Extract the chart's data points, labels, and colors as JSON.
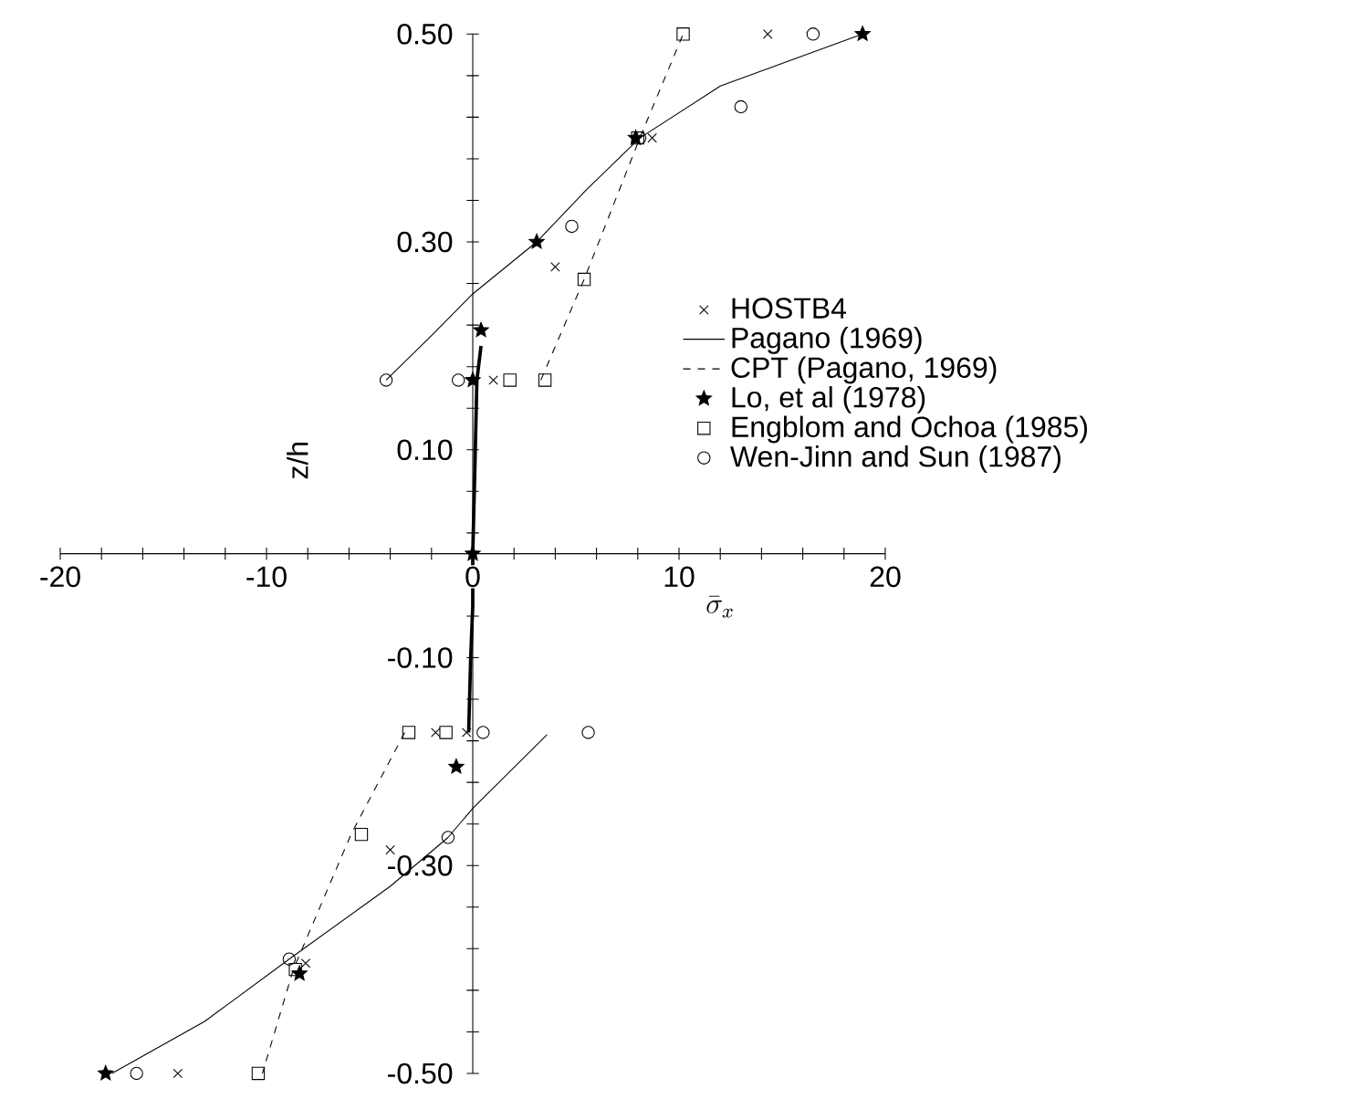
{
  "chart_data": {
    "type": "scatter",
    "xlabel": "\\bar{\\sigma}_x",
    "ylabel": "z/h",
    "xlim": [
      -20,
      20
    ],
    "ylim": [
      -0.5,
      0.5
    ],
    "xticks": [
      -20,
      {
        "value": -18,
        "label": null
      },
      {
        "value": -16,
        "label": null
      },
      {
        "value": -14,
        "label": null
      },
      {
        "value": -12,
        "label": null
      },
      -10,
      {
        "value": -8,
        "label": null
      },
      {
        "value": -6,
        "label": null
      },
      {
        "value": -4,
        "label": null
      },
      {
        "value": -2,
        "label": null
      },
      0,
      {
        "value": 2,
        "label": null
      },
      {
        "value": 4,
        "label": null
      },
      {
        "value": 6,
        "label": null
      },
      {
        "value": 8,
        "label": null
      },
      10,
      {
        "value": 12,
        "label": null
      },
      {
        "value": 14,
        "label": null
      },
      {
        "value": 16,
        "label": null
      },
      {
        "value": 18,
        "label": null
      },
      20
    ],
    "yticks": [
      {
        "value": -0.5,
        "label": "-0.50"
      },
      {
        "value": -0.46,
        "label": null
      },
      {
        "value": -0.42,
        "label": null
      },
      {
        "value": -0.38,
        "label": null
      },
      {
        "value": -0.34,
        "label": null
      },
      {
        "value": -0.3,
        "label": "-0.30"
      },
      {
        "value": -0.26,
        "label": null
      },
      {
        "value": -0.22,
        "label": null
      },
      {
        "value": -0.18,
        "label": null
      },
      {
        "value": -0.14,
        "label": null
      },
      {
        "value": -0.1,
        "label": "-0.10"
      },
      {
        "value": -0.06,
        "label": null
      },
      {
        "value": -0.02,
        "label": null
      },
      {
        "value": 0.02,
        "label": null
      },
      {
        "value": 0.06,
        "label": null
      },
      {
        "value": 0.1,
        "label": "0.10"
      },
      {
        "value": 0.14,
        "label": null
      },
      {
        "value": 0.18,
        "label": null
      },
      {
        "value": 0.22,
        "label": null
      },
      {
        "value": 0.26,
        "label": null
      },
      {
        "value": 0.3,
        "label": "0.30"
      },
      {
        "value": 0.34,
        "label": null
      },
      {
        "value": 0.38,
        "label": null
      },
      {
        "value": 0.42,
        "label": null
      },
      {
        "value": 0.46,
        "label": null
      },
      {
        "value": 0.5,
        "label": "0.50"
      }
    ],
    "grid": false,
    "legend": "right",
    "series": [
      {
        "name": "HOSTB4",
        "marker": "cross",
        "color": "#000000",
        "x": [
          14.3,
          8.7,
          4.0,
          1.0,
          -0.3,
          -1.8,
          -4.0,
          -8.1,
          -14.3
        ],
        "values": [
          0.5,
          0.4,
          0.276,
          0.167,
          -0.172,
          -0.172,
          -0.285,
          -0.394,
          -0.5
        ]
      },
      {
        "name": "Pagano (1969)",
        "type": "line",
        "marker": "none",
        "line_style": "solid",
        "color": "#000000",
        "x": [
          -4.2,
          -2,
          0,
          3.1,
          5.5,
          8.1,
          12,
          18.9,
          null,
          3.6,
          0,
          -1.2,
          -4,
          -8.9,
          -13,
          -17.5
        ],
        "values": [
          0.167,
          0.21,
          0.25,
          0.3,
          0.35,
          0.4,
          0.45,
          0.5,
          null,
          -0.174,
          -0.245,
          -0.273,
          -0.32,
          -0.39,
          -0.45,
          -0.5
        ]
      },
      {
        "name": "CPT (Pagano, 1969)",
        "type": "line",
        "marker": "none",
        "line_style": "dashed",
        "color": "#000000",
        "x": [
          3.3,
          5.4,
          8.1,
          10.2,
          null,
          -3.3,
          -5.9,
          -8.7,
          -10.2
        ],
        "values": [
          0.167,
          0.264,
          0.4,
          0.5,
          null,
          -0.172,
          -0.27,
          -0.4,
          -0.5
        ]
      },
      {
        "name": "Lo, et al (1978)",
        "marker": "star",
        "color": "#000000",
        "x": [
          18.9,
          7.9,
          3.1,
          0.4,
          0,
          0,
          -0.8,
          -8.4,
          -17.8
        ],
        "values": [
          0.5,
          0.4,
          0.3,
          0.215,
          0.167,
          0,
          -0.205,
          -0.404,
          -0.5
        ]
      },
      {
        "name": "Engblom and Ochoa (1985)",
        "marker": "square",
        "color": "#000000",
        "x": [
          10.2,
          8.0,
          5.4,
          3.5,
          1.8,
          -1.3,
          -3.1,
          -5.4,
          -8.6,
          -10.4
        ],
        "values": [
          0.5,
          0.4,
          0.264,
          0.167,
          0.167,
          -0.172,
          -0.172,
          -0.27,
          -0.4,
          -0.5
        ]
      },
      {
        "name": "Wen-Jinn and Sun (1987)",
        "marker": "circle",
        "color": "#000000",
        "x": [
          16.5,
          13.0,
          8.1,
          4.8,
          -0.7,
          -4.2,
          0.5,
          5.6,
          -1.2,
          -8.9,
          -16.3
        ],
        "values": [
          0.5,
          0.43,
          0.4,
          0.315,
          0.167,
          0.167,
          -0.172,
          -0.172,
          -0.273,
          -0.39,
          -0.5
        ]
      },
      {
        "type": "line",
        "marker": "none",
        "line_style": "solid",
        "color": "#000000",
        "x": [
          0.4,
          0.2,
          0.1,
          0,
          0,
          -0.1,
          -0.2
        ],
        "values": [
          0.2,
          0.167,
          0.08,
          0,
          -0.05,
          -0.1,
          -0.172
        ]
      }
    ]
  }
}
